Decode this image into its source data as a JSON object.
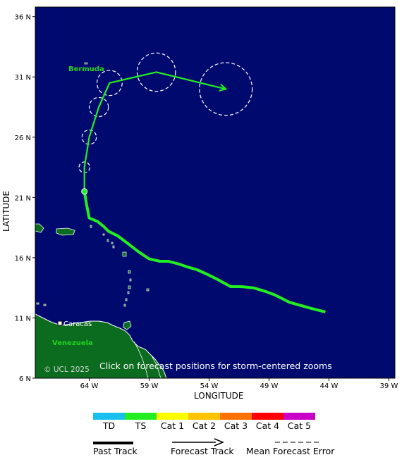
{
  "map": {
    "axis": {
      "x_title": "LONGITUDE",
      "y_title": "LATITUDE",
      "lat_ticks": [
        "36 N",
        "31 N",
        "26 N",
        "21 N",
        "16 N",
        "11 N",
        "6 N"
      ],
      "lon_ticks": [
        "64 W",
        "59 W",
        "54 W",
        "49 W",
        "44 W",
        "39 W"
      ],
      "lat_range": [
        6,
        36.8
      ],
      "lon_range": [
        -68.5,
        -38.5
      ]
    },
    "labels": {
      "bermuda": "Bermuda",
      "caracas": "Caracas",
      "venezuela": "Venezuela",
      "copyright": "© UCL 2025",
      "hint": "Click on forecast positions for storm-centered zooms"
    },
    "colors": {
      "ocean": "#000a6e",
      "land": "#0b6b1e",
      "track": "#22ee22",
      "border": "#ffffff"
    },
    "past_track": [
      [
        -44.3,
        11.5
      ],
      [
        -45.5,
        11.8
      ],
      [
        -47.3,
        12.3
      ],
      [
        -48.5,
        12.9
      ],
      [
        -49.3,
        13.2
      ],
      [
        -50.3,
        13.5
      ],
      [
        -51.3,
        13.6
      ],
      [
        -52.2,
        13.6
      ],
      [
        -53.3,
        14.2
      ],
      [
        -54.1,
        14.6
      ],
      [
        -55.0,
        15.0
      ],
      [
        -55.7,
        15.2
      ],
      [
        -56.6,
        15.5
      ],
      [
        -57.4,
        15.7
      ],
      [
        -58.1,
        15.7
      ],
      [
        -59.0,
        15.9
      ],
      [
        -59.9,
        16.5
      ],
      [
        -60.8,
        17.2
      ],
      [
        -61.6,
        17.8
      ],
      [
        -62.4,
        18.2
      ],
      [
        -62.8,
        18.6
      ],
      [
        -63.3,
        19.0
      ],
      [
        -64.0,
        19.3
      ],
      [
        -64.2,
        20.3
      ],
      [
        -64.4,
        21.5
      ]
    ],
    "forecast_track": [
      [
        -64.4,
        21.5
      ],
      [
        -64.4,
        23.5
      ],
      [
        -64.0,
        26.0
      ],
      [
        -63.2,
        28.5
      ],
      [
        -62.3,
        30.5
      ],
      [
        -58.4,
        31.4
      ],
      [
        -52.6,
        30.0
      ]
    ],
    "error_circles": [
      {
        "lon": -64.4,
        "lat": 23.5,
        "r_deg": 0.45
      },
      {
        "lon": -64.0,
        "lat": 26.0,
        "r_deg": 0.6
      },
      {
        "lon": -63.2,
        "lat": 28.5,
        "r_deg": 0.8
      },
      {
        "lon": -62.3,
        "lat": 30.5,
        "r_deg": 1.05
      },
      {
        "lon": -58.4,
        "lat": 31.4,
        "r_deg": 1.6
      },
      {
        "lon": -52.6,
        "lat": 30.0,
        "r_deg": 2.2
      }
    ],
    "current_position": {
      "lon": -64.4,
      "lat": 21.5
    }
  },
  "legend": {
    "categories": [
      {
        "label": "TD",
        "color": "#18c0f0"
      },
      {
        "label": "TS",
        "color": "#22ee22"
      },
      {
        "label": "Cat 1",
        "color": "#ffff00"
      },
      {
        "label": "Cat 2",
        "color": "#ffc400"
      },
      {
        "label": "Cat 3",
        "color": "#ff7200"
      },
      {
        "label": "Cat 4",
        "color": "#ff0000"
      },
      {
        "label": "Cat 5",
        "color": "#c800c8"
      }
    ],
    "past_track_label": "Past Track",
    "forecast_track_label": "Forecast Track",
    "error_label": "Mean Forecast Error"
  }
}
